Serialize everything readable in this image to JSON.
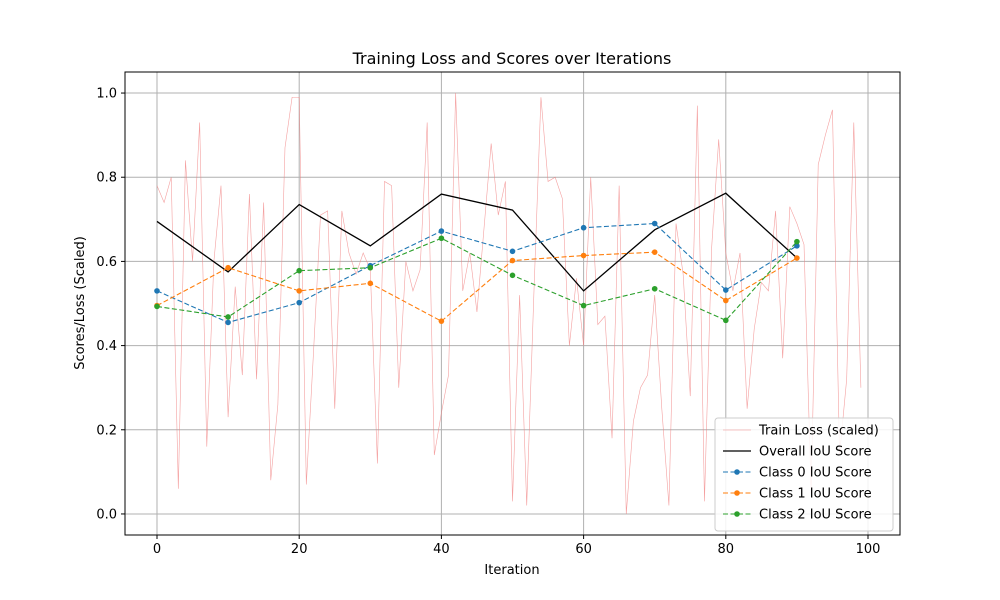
{
  "chart_data": {
    "type": "line",
    "title": "Training Loss and Scores over Iterations",
    "xlabel": "Iteration",
    "ylabel": "Scores/Loss (Scaled)",
    "xlim": [
      -4.5,
      104.5
    ],
    "ylim": [
      -0.05,
      1.05
    ],
    "xticks": [
      0,
      20,
      40,
      60,
      80,
      100
    ],
    "yticks": [
      0.0,
      0.2,
      0.4,
      0.6,
      0.8,
      1.0
    ],
    "xtick_labels": [
      "0",
      "20",
      "40",
      "60",
      "80",
      "100"
    ],
    "ytick_labels": [
      "0.0",
      "0.2",
      "0.4",
      "0.6",
      "0.8",
      "1.0"
    ],
    "grid": true,
    "legend_position": "lower-right",
    "series": [
      {
        "name": "Train Loss (scaled)",
        "color": "#f08080",
        "style": "thin-solid",
        "x": [
          0,
          1,
          2,
          3,
          4,
          5,
          6,
          7,
          8,
          9,
          10,
          11,
          12,
          13,
          14,
          15,
          16,
          17,
          18,
          19,
          20,
          21,
          22,
          23,
          24,
          25,
          26,
          27,
          28,
          29,
          30,
          31,
          32,
          33,
          34,
          35,
          36,
          37,
          38,
          39,
          40,
          41,
          42,
          43,
          44,
          45,
          46,
          47,
          48,
          49,
          50,
          51,
          52,
          53,
          54,
          55,
          56,
          57,
          58,
          59,
          60,
          61,
          62,
          63,
          64,
          65,
          66,
          67,
          68,
          69,
          70,
          71,
          72,
          73,
          74,
          75,
          76,
          77,
          78,
          79,
          80,
          81,
          82,
          83,
          84,
          85,
          86,
          87,
          88,
          89,
          90,
          91,
          92,
          93,
          94,
          95,
          96,
          97,
          98,
          99
        ],
        "values": [
          0.78,
          0.74,
          0.8,
          0.06,
          0.84,
          0.6,
          0.93,
          0.16,
          0.6,
          0.78,
          0.23,
          0.54,
          0.33,
          0.76,
          0.32,
          0.74,
          0.08,
          0.26,
          0.87,
          0.99,
          0.99,
          0.07,
          0.38,
          0.71,
          0.72,
          0.25,
          0.72,
          0.62,
          0.57,
          0.62,
          0.58,
          0.12,
          0.79,
          0.78,
          0.3,
          0.6,
          0.53,
          0.58,
          0.93,
          0.14,
          0.24,
          0.33,
          1.0,
          0.53,
          0.62,
          0.48,
          0.68,
          0.88,
          0.71,
          0.79,
          0.03,
          0.52,
          0.02,
          0.52,
          0.99,
          0.79,
          0.8,
          0.75,
          0.4,
          0.56,
          0.4,
          0.8,
          0.45,
          0.47,
          0.18,
          0.78,
          0.0,
          0.22,
          0.3,
          0.33,
          0.52,
          0.25,
          0.02,
          0.69,
          0.57,
          0.28,
          0.97,
          0.03,
          0.63,
          0.89,
          0.62,
          0.53,
          0.62,
          0.25,
          0.44,
          0.55,
          0.53,
          0.72,
          0.37,
          0.73,
          0.69,
          0.64,
          0.05,
          0.83,
          0.9,
          0.96,
          0.14,
          0.32,
          0.93,
          0.3
        ]
      },
      {
        "name": "Overall IoU Score",
        "color": "#000000",
        "style": "solid",
        "x": [
          0,
          10,
          20,
          30,
          40,
          50,
          60,
          70,
          80,
          90
        ],
        "values": [
          0.695,
          0.575,
          0.735,
          0.637,
          0.76,
          0.722,
          0.53,
          0.675,
          0.762,
          0.608
        ]
      },
      {
        "name": "Class 0 IoU Score",
        "color": "#1f77b4",
        "style": "dashed-dot",
        "x": [
          0,
          10,
          20,
          30,
          40,
          50,
          60,
          70,
          80,
          90
        ],
        "values": [
          0.53,
          0.455,
          0.502,
          0.59,
          0.672,
          0.624,
          0.68,
          0.69,
          0.532,
          0.637
        ]
      },
      {
        "name": "Class 1 IoU Score",
        "color": "#ff7f0e",
        "style": "dashed-dot",
        "x": [
          0,
          10,
          20,
          30,
          40,
          50,
          60,
          70,
          80,
          90
        ],
        "values": [
          0.495,
          0.585,
          0.53,
          0.548,
          0.458,
          0.602,
          0.614,
          0.622,
          0.507,
          0.608
        ]
      },
      {
        "name": "Class 2 IoU Score",
        "color": "#2ca02c",
        "style": "dashed-dot",
        "x": [
          0,
          10,
          20,
          30,
          40,
          50,
          60,
          70,
          80,
          90
        ],
        "values": [
          0.493,
          0.468,
          0.578,
          0.585,
          0.655,
          0.567,
          0.495,
          0.535,
          0.46,
          0.647
        ]
      }
    ]
  }
}
